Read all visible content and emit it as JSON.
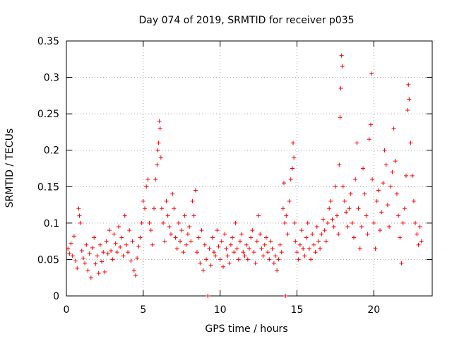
{
  "chart_data": {
    "type": "scatter",
    "title": "Day 074 of 2019, SRMTID for receiver p035",
    "xlabel": "GPS time / hours",
    "ylabel": "SRMTID / TECUs",
    "xlim": [
      0,
      23.8
    ],
    "ylim": [
      0,
      0.35
    ],
    "grid": true,
    "marker": "+",
    "marker_color": "#ff0000",
    "xticks": [
      0,
      5,
      10,
      15,
      20
    ],
    "xtick_labels": [
      "0",
      "5",
      "10",
      "15",
      "20"
    ],
    "yticks": [
      0,
      0.05,
      0.1,
      0.15,
      0.2,
      0.25,
      0.3,
      0.35
    ],
    "ytick_labels": [
      "0",
      "0.05",
      "0.1",
      "0.15",
      "0.2",
      "0.25",
      "0.3",
      "0.35"
    ],
    "series": [
      {
        "name": "SRMTID",
        "points": [
          [
            0.1,
            0.065
          ],
          [
            0.2,
            0.058
          ],
          [
            0.3,
            0.072
          ],
          [
            0.4,
            0.055
          ],
          [
            0.5,
            0.082
          ],
          [
            0.6,
            0.048
          ],
          [
            0.7,
            0.038
          ],
          [
            0.8,
            0.12
          ],
          [
            0.85,
            0.11
          ],
          [
            0.9,
            0.1
          ],
          [
            1.0,
            0.062
          ],
          [
            1.1,
            0.052
          ],
          [
            1.2,
            0.045
          ],
          [
            1.3,
            0.07
          ],
          [
            1.4,
            0.035
          ],
          [
            1.5,
            0.058
          ],
          [
            1.6,
            0.025
          ],
          [
            1.7,
            0.066
          ],
          [
            1.8,
            0.08
          ],
          [
            1.9,
            0.044
          ],
          [
            2.0,
            0.055
          ],
          [
            2.1,
            0.031
          ],
          [
            2.2,
            0.07
          ],
          [
            2.3,
            0.047
          ],
          [
            2.4,
            0.06
          ],
          [
            2.5,
            0.033
          ],
          [
            2.6,
            0.075
          ],
          [
            2.7,
            0.058
          ],
          [
            2.8,
            0.09
          ],
          [
            2.9,
            0.062
          ],
          [
            3.0,
            0.05
          ],
          [
            3.1,
            0.085
          ],
          [
            3.2,
            0.072
          ],
          [
            3.3,
            0.06
          ],
          [
            3.4,
            0.095
          ],
          [
            3.5,
            0.067
          ],
          [
            3.6,
            0.08
          ],
          [
            3.7,
            0.055
          ],
          [
            3.8,
            0.11
          ],
          [
            3.9,
            0.07
          ],
          [
            4.0,
            0.06
          ],
          [
            4.1,
            0.09
          ],
          [
            4.2,
            0.048
          ],
          [
            4.3,
            0.075
          ],
          [
            4.4,
            0.035
          ],
          [
            4.5,
            0.028
          ],
          [
            4.6,
            0.052
          ],
          [
            4.7,
            0.068
          ],
          [
            4.8,
            0.08
          ],
          [
            4.9,
            0.1
          ],
          [
            5.0,
            0.13
          ],
          [
            5.1,
            0.12
          ],
          [
            5.2,
            0.15
          ],
          [
            5.3,
            0.16
          ],
          [
            5.4,
            0.1
          ],
          [
            5.5,
            0.09
          ],
          [
            5.6,
            0.07
          ],
          [
            5.7,
            0.12
          ],
          [
            5.8,
            0.16
          ],
          [
            5.9,
            0.18
          ],
          [
            5.95,
            0.2
          ],
          [
            6.0,
            0.21
          ],
          [
            6.05,
            0.24
          ],
          [
            6.1,
            0.23
          ],
          [
            6.15,
            0.19
          ],
          [
            6.2,
            0.12
          ],
          [
            6.3,
            0.1
          ],
          [
            6.4,
            0.075
          ],
          [
            6.5,
            0.13
          ],
          [
            6.6,
            0.11
          ],
          [
            6.7,
            0.095
          ],
          [
            6.8,
            0.085
          ],
          [
            6.9,
            0.14
          ],
          [
            7.0,
            0.12
          ],
          [
            7.1,
            0.08
          ],
          [
            7.2,
            0.065
          ],
          [
            7.3,
            0.1
          ],
          [
            7.4,
            0.075
          ],
          [
            7.5,
            0.09
          ],
          [
            7.6,
            0.06
          ],
          [
            7.7,
            0.11
          ],
          [
            7.8,
            0.07
          ],
          [
            7.9,
            0.085
          ],
          [
            8.0,
            0.095
          ],
          [
            8.1,
            0.075
          ],
          [
            8.2,
            0.13
          ],
          [
            8.3,
            0.11
          ],
          [
            8.4,
            0.145
          ],
          [
            8.5,
            0.06
          ],
          [
            8.6,
            0.08
          ],
          [
            8.7,
            0.045
          ],
          [
            8.8,
            0.09
          ],
          [
            8.9,
            0.035
          ],
          [
            9.0,
            0.07
          ],
          [
            9.1,
            0.05
          ],
          [
            9.2,
            0.0
          ],
          [
            9.3,
            0.065
          ],
          [
            9.4,
            0.042
          ],
          [
            9.5,
            0.08
          ],
          [
            9.6,
            0.06
          ],
          [
            9.7,
            0.055
          ],
          [
            9.8,
            0.09
          ],
          [
            9.9,
            0.068
          ],
          [
            10.0,
            0.05
          ],
          [
            10.1,
            0.075
          ],
          [
            10.2,
            0.04
          ],
          [
            10.3,
            0.085
          ],
          [
            10.4,
            0.065
          ],
          [
            10.5,
            0.055
          ],
          [
            10.6,
            0.045
          ],
          [
            10.7,
            0.07
          ],
          [
            10.8,
            0.08
          ],
          [
            10.9,
            0.06
          ],
          [
            11.0,
            0.1
          ],
          [
            11.1,
            0.065
          ],
          [
            11.2,
            0.05
          ],
          [
            11.3,
            0.075
          ],
          [
            11.4,
            0.085
          ],
          [
            11.5,
            0.06
          ],
          [
            11.6,
            0.055
          ],
          [
            11.7,
            0.07
          ],
          [
            11.8,
            0.05
          ],
          [
            11.9,
            0.065
          ],
          [
            12.0,
            0.08
          ],
          [
            12.1,
            0.09
          ],
          [
            12.2,
            0.06
          ],
          [
            12.3,
            0.045
          ],
          [
            12.4,
            0.075
          ],
          [
            12.5,
            0.11
          ],
          [
            12.6,
            0.085
          ],
          [
            12.7,
            0.065
          ],
          [
            12.8,
            0.055
          ],
          [
            12.9,
            0.07
          ],
          [
            13.0,
            0.08
          ],
          [
            13.1,
            0.06
          ],
          [
            13.2,
            0.05
          ],
          [
            13.3,
            0.075
          ],
          [
            13.4,
            0.065
          ],
          [
            13.5,
            0.045
          ],
          [
            13.6,
            0.055
          ],
          [
            13.7,
            0.035
          ],
          [
            13.8,
            0.05
          ],
          [
            13.9,
            0.07
          ],
          [
            14.0,
            0.06
          ],
          [
            14.1,
            0.12
          ],
          [
            14.15,
            0.155
          ],
          [
            14.2,
            0.1
          ],
          [
            14.25,
            0.0
          ],
          [
            14.3,
            0.11
          ],
          [
            14.4,
            0.085
          ],
          [
            14.5,
            0.13
          ],
          [
            14.6,
            0.16
          ],
          [
            14.7,
            0.175
          ],
          [
            14.75,
            0.21
          ],
          [
            14.8,
            0.19
          ],
          [
            14.85,
            0.1
          ],
          [
            14.9,
            0.075
          ],
          [
            15.0,
            0.06
          ],
          [
            15.1,
            0.05
          ],
          [
            15.2,
            0.07
          ],
          [
            15.3,
            0.09
          ],
          [
            15.4,
            0.065
          ],
          [
            15.5,
            0.055
          ],
          [
            15.6,
            0.08
          ],
          [
            15.7,
            0.1
          ],
          [
            15.8,
            0.065
          ],
          [
            15.9,
            0.05
          ],
          [
            16.0,
            0.085
          ],
          [
            16.1,
            0.07
          ],
          [
            16.2,
            0.06
          ],
          [
            16.3,
            0.095
          ],
          [
            16.4,
            0.075
          ],
          [
            16.5,
            0.065
          ],
          [
            16.6,
            0.085
          ],
          [
            16.7,
            0.105
          ],
          [
            16.8,
            0.09
          ],
          [
            16.9,
            0.075
          ],
          [
            17.0,
            0.1
          ],
          [
            17.1,
            0.12
          ],
          [
            17.2,
            0.13
          ],
          [
            17.3,
            0.105
          ],
          [
            17.4,
            0.095
          ],
          [
            17.5,
            0.15
          ],
          [
            17.6,
            0.11
          ],
          [
            17.7,
            0.085
          ],
          [
            17.75,
            0.18
          ],
          [
            17.8,
            0.245
          ],
          [
            17.85,
            0.285
          ],
          [
            17.9,
            0.33
          ],
          [
            17.95,
            0.315
          ],
          [
            18.0,
            0.15
          ],
          [
            18.1,
            0.13
          ],
          [
            18.2,
            0.115
          ],
          [
            18.3,
            0.095
          ],
          [
            18.4,
            0.12
          ],
          [
            18.5,
            0.14
          ],
          [
            18.6,
            0.1
          ],
          [
            18.7,
            0.08
          ],
          [
            18.8,
            0.16
          ],
          [
            18.9,
            0.21
          ],
          [
            19.0,
            0.12
          ],
          [
            19.1,
            0.065
          ],
          [
            19.2,
            0.095
          ],
          [
            19.3,
            0.175
          ],
          [
            19.4,
            0.14
          ],
          [
            19.5,
            0.11
          ],
          [
            19.6,
            0.085
          ],
          [
            19.7,
            0.215
          ],
          [
            19.8,
            0.235
          ],
          [
            19.85,
            0.305
          ],
          [
            19.9,
            0.16
          ],
          [
            20.0,
            0.1
          ],
          [
            20.1,
            0.065
          ],
          [
            20.2,
            0.13
          ],
          [
            20.3,
            0.145
          ],
          [
            20.4,
            0.09
          ],
          [
            20.5,
            0.115
          ],
          [
            20.6,
            0.155
          ],
          [
            20.7,
            0.2
          ],
          [
            20.8,
            0.18
          ],
          [
            20.9,
            0.125
          ],
          [
            21.0,
            0.095
          ],
          [
            21.1,
            0.15
          ],
          [
            21.2,
            0.17
          ],
          [
            21.3,
            0.23
          ],
          [
            21.4,
            0.185
          ],
          [
            21.5,
            0.14
          ],
          [
            21.6,
            0.11
          ],
          [
            21.7,
            0.08
          ],
          [
            21.8,
            0.045
          ],
          [
            21.9,
            0.1
          ],
          [
            22.0,
            0.12
          ],
          [
            22.1,
            0.165
          ],
          [
            22.2,
            0.255
          ],
          [
            22.25,
            0.29
          ],
          [
            22.3,
            0.27
          ],
          [
            22.4,
            0.21
          ],
          [
            22.5,
            0.165
          ],
          [
            22.6,
            0.13
          ],
          [
            22.7,
            0.1
          ],
          [
            22.8,
            0.085
          ],
          [
            22.9,
            0.07
          ],
          [
            23.0,
            0.095
          ],
          [
            23.1,
            0.075
          ]
        ]
      }
    ]
  }
}
